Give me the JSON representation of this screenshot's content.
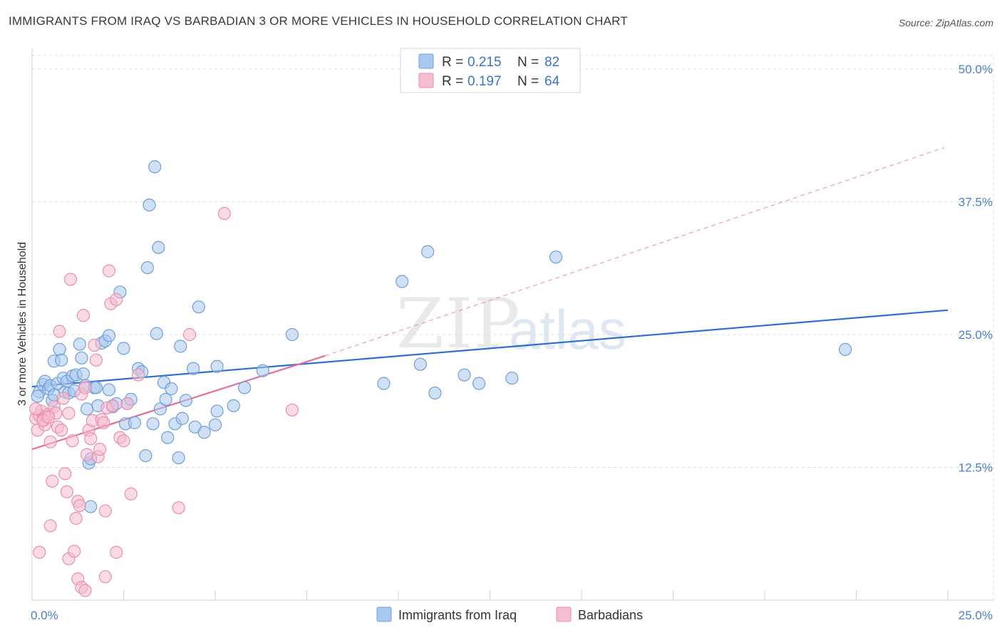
{
  "title": "IMMIGRANTS FROM IRAQ VS BARBADIAN 3 OR MORE VEHICLES IN HOUSEHOLD CORRELATION CHART",
  "source": "Source: ZipAtlas.com",
  "watermark": {
    "zip": "ZIP",
    "atlas": "atlas"
  },
  "colors": {
    "blue_fill": "#a9c8ef",
    "blue_stroke": "#6f9fd8",
    "blue_line": "#2f6fcc",
    "pink_fill": "#f6bccf",
    "pink_stroke": "#e98fae",
    "pink_line": "#e07099",
    "grid": "#dcdcdc",
    "tick_label": "#4a7fc8"
  },
  "chart_data": {
    "type": "scatter",
    "title": "IMMIGRANTS FROM IRAQ VS BARBADIAN 3 OR MORE VEHICLES IN HOUSEHOLD CORRELATION CHART",
    "xlabel": "",
    "ylabel": "3 or more Vehicles in Household",
    "xlim": [
      0,
      25
    ],
    "ylim": [
      0,
      50
    ],
    "x_tick_labels": [
      {
        "value": 0,
        "label": "0.0%"
      },
      {
        "value": 25,
        "label": "25.0%"
      }
    ],
    "y_tick_labels": [
      {
        "value": 12.5,
        "label": "12.5%"
      },
      {
        "value": 25,
        "label": "25.0%"
      },
      {
        "value": 37.5,
        "label": "37.5%"
      },
      {
        "value": 50,
        "label": "50.0%"
      }
    ],
    "legend_top": [
      {
        "r_label": "R =",
        "r_value": "0.215",
        "n_label": "N =",
        "n_value": "82"
      },
      {
        "r_label": "R =",
        "r_value": "0.197",
        "n_label": "N =",
        "n_value": "64"
      }
    ],
    "series": [
      {
        "name": "Immigrants from Iraq",
        "color": "blue",
        "trend": {
          "x0": 0,
          "y0": 20.1,
          "x1": 25,
          "y1": 27.3,
          "style": "solid"
        },
        "points": [
          [
            0.2,
            19.6
          ],
          [
            0.3,
            20.3
          ],
          [
            0.35,
            20.6
          ],
          [
            0.45,
            19.9
          ],
          [
            0.5,
            20.2
          ],
          [
            0.55,
            18.8
          ],
          [
            0.6,
            22.5
          ],
          [
            0.6,
            19.3
          ],
          [
            0.7,
            20.4
          ],
          [
            0.75,
            23.6
          ],
          [
            0.8,
            22.6
          ],
          [
            0.85,
            20.9
          ],
          [
            0.9,
            19.6
          ],
          [
            0.95,
            20.6
          ],
          [
            1.0,
            19.5
          ],
          [
            1.1,
            21.1
          ],
          [
            1.15,
            19.7
          ],
          [
            1.2,
            21.2
          ],
          [
            1.3,
            24.1
          ],
          [
            1.35,
            22.8
          ],
          [
            1.4,
            21.3
          ],
          [
            1.45,
            20.2
          ],
          [
            1.5,
            18.0
          ],
          [
            1.55,
            12.9
          ],
          [
            1.6,
            13.3
          ],
          [
            1.6,
            8.8
          ],
          [
            1.7,
            20.0
          ],
          [
            1.75,
            20.0
          ],
          [
            1.8,
            18.3
          ],
          [
            1.9,
            24.2
          ],
          [
            2.0,
            24.4
          ],
          [
            2.1,
            24.9
          ],
          [
            2.1,
            19.8
          ],
          [
            2.2,
            18.2
          ],
          [
            2.3,
            18.5
          ],
          [
            2.4,
            29.0
          ],
          [
            2.5,
            23.7
          ],
          [
            2.55,
            16.6
          ],
          [
            2.6,
            18.5
          ],
          [
            2.7,
            18.9
          ],
          [
            2.8,
            16.7
          ],
          [
            2.9,
            21.8
          ],
          [
            3.0,
            21.5
          ],
          [
            3.1,
            13.6
          ],
          [
            3.15,
            31.3
          ],
          [
            3.2,
            37.2
          ],
          [
            3.3,
            16.6
          ],
          [
            3.4,
            25.1
          ],
          [
            3.45,
            33.2
          ],
          [
            3.5,
            18.0
          ],
          [
            3.6,
            20.5
          ],
          [
            3.65,
            18.9
          ],
          [
            3.7,
            15.3
          ],
          [
            3.8,
            19.9
          ],
          [
            3.9,
            16.6
          ],
          [
            4.0,
            13.4
          ],
          [
            4.05,
            23.9
          ],
          [
            4.1,
            17.1
          ],
          [
            4.2,
            18.8
          ],
          [
            4.4,
            21.8
          ],
          [
            4.45,
            16.3
          ],
          [
            4.55,
            27.6
          ],
          [
            4.7,
            15.8
          ],
          [
            5.05,
            22.0
          ],
          [
            5.0,
            16.5
          ],
          [
            5.05,
            17.8
          ],
          [
            5.5,
            18.3
          ],
          [
            5.8,
            20.0
          ],
          [
            6.3,
            21.6
          ],
          [
            7.1,
            25.0
          ],
          [
            3.35,
            40.8
          ],
          [
            9.6,
            20.4
          ],
          [
            10.1,
            30.0
          ],
          [
            10.6,
            22.2
          ],
          [
            10.8,
            32.8
          ],
          [
            11.0,
            19.5
          ],
          [
            11.8,
            21.2
          ],
          [
            12.2,
            20.4
          ],
          [
            13.1,
            20.9
          ],
          [
            14.3,
            32.3
          ],
          [
            22.2,
            23.6
          ],
          [
            0.15,
            19.2
          ]
        ]
      },
      {
        "name": "Barbadians",
        "color": "pink",
        "trend": {
          "x0": 0,
          "y0": 14.2,
          "x1": 8.0,
          "y1": 23.0,
          "style": "solid",
          "extension": {
            "x1": 24.9,
            "y1": 42.6,
            "style": "dashed"
          }
        },
        "points": [
          [
            0.1,
            17.1
          ],
          [
            0.15,
            16.0
          ],
          [
            0.2,
            17.4
          ],
          [
            0.25,
            17.8
          ],
          [
            0.3,
            17.0
          ],
          [
            0.35,
            16.5
          ],
          [
            0.4,
            17.3
          ],
          [
            0.45,
            17.5
          ],
          [
            0.5,
            14.9
          ],
          [
            0.55,
            11.2
          ],
          [
            0.6,
            18.2
          ],
          [
            0.65,
            17.6
          ],
          [
            0.7,
            16.3
          ],
          [
            0.75,
            25.3
          ],
          [
            0.8,
            16.0
          ],
          [
            0.85,
            19.0
          ],
          [
            0.9,
            11.9
          ],
          [
            0.95,
            10.2
          ],
          [
            1.0,
            17.6
          ],
          [
            1.05,
            30.2
          ],
          [
            1.1,
            15.0
          ],
          [
            1.2,
            7.7
          ],
          [
            1.25,
            9.3
          ],
          [
            1.3,
            8.9
          ],
          [
            1.35,
            19.4
          ],
          [
            1.4,
            26.8
          ],
          [
            1.45,
            20.0
          ],
          [
            1.5,
            13.7
          ],
          [
            1.55,
            16.0
          ],
          [
            1.6,
            15.2
          ],
          [
            1.65,
            16.9
          ],
          [
            1.7,
            24.0
          ],
          [
            1.75,
            22.6
          ],
          [
            1.8,
            13.5
          ],
          [
            1.85,
            14.2
          ],
          [
            1.9,
            17.0
          ],
          [
            1.95,
            16.7
          ],
          [
            2.05,
            18.1
          ],
          [
            2.1,
            31.0
          ],
          [
            2.15,
            27.9
          ],
          [
            2.2,
            18.3
          ],
          [
            2.3,
            28.3
          ],
          [
            2.4,
            15.3
          ],
          [
            2.5,
            15.0
          ],
          [
            2.6,
            18.5
          ],
          [
            2.7,
            10.0
          ],
          [
            2.9,
            21.2
          ],
          [
            2.0,
            8.4
          ],
          [
            4.0,
            8.7
          ],
          [
            4.3,
            25.0
          ],
          [
            5.25,
            36.4
          ],
          [
            7.1,
            17.9
          ],
          [
            0.2,
            4.5
          ],
          [
            1.0,
            3.9
          ],
          [
            1.15,
            4.6
          ],
          [
            1.25,
            2.0
          ],
          [
            1.35,
            1.2
          ],
          [
            1.45,
            0.9
          ],
          [
            2.0,
            2.2
          ],
          [
            2.3,
            4.5
          ],
          [
            0.5,
            7.0
          ],
          [
            0.1,
            18.0
          ],
          [
            0.3,
            16.9
          ],
          [
            0.45,
            17.2
          ]
        ]
      }
    ]
  },
  "bottom_legend": [
    {
      "label": "Immigrants from Iraq"
    },
    {
      "label": "Barbadians"
    }
  ]
}
